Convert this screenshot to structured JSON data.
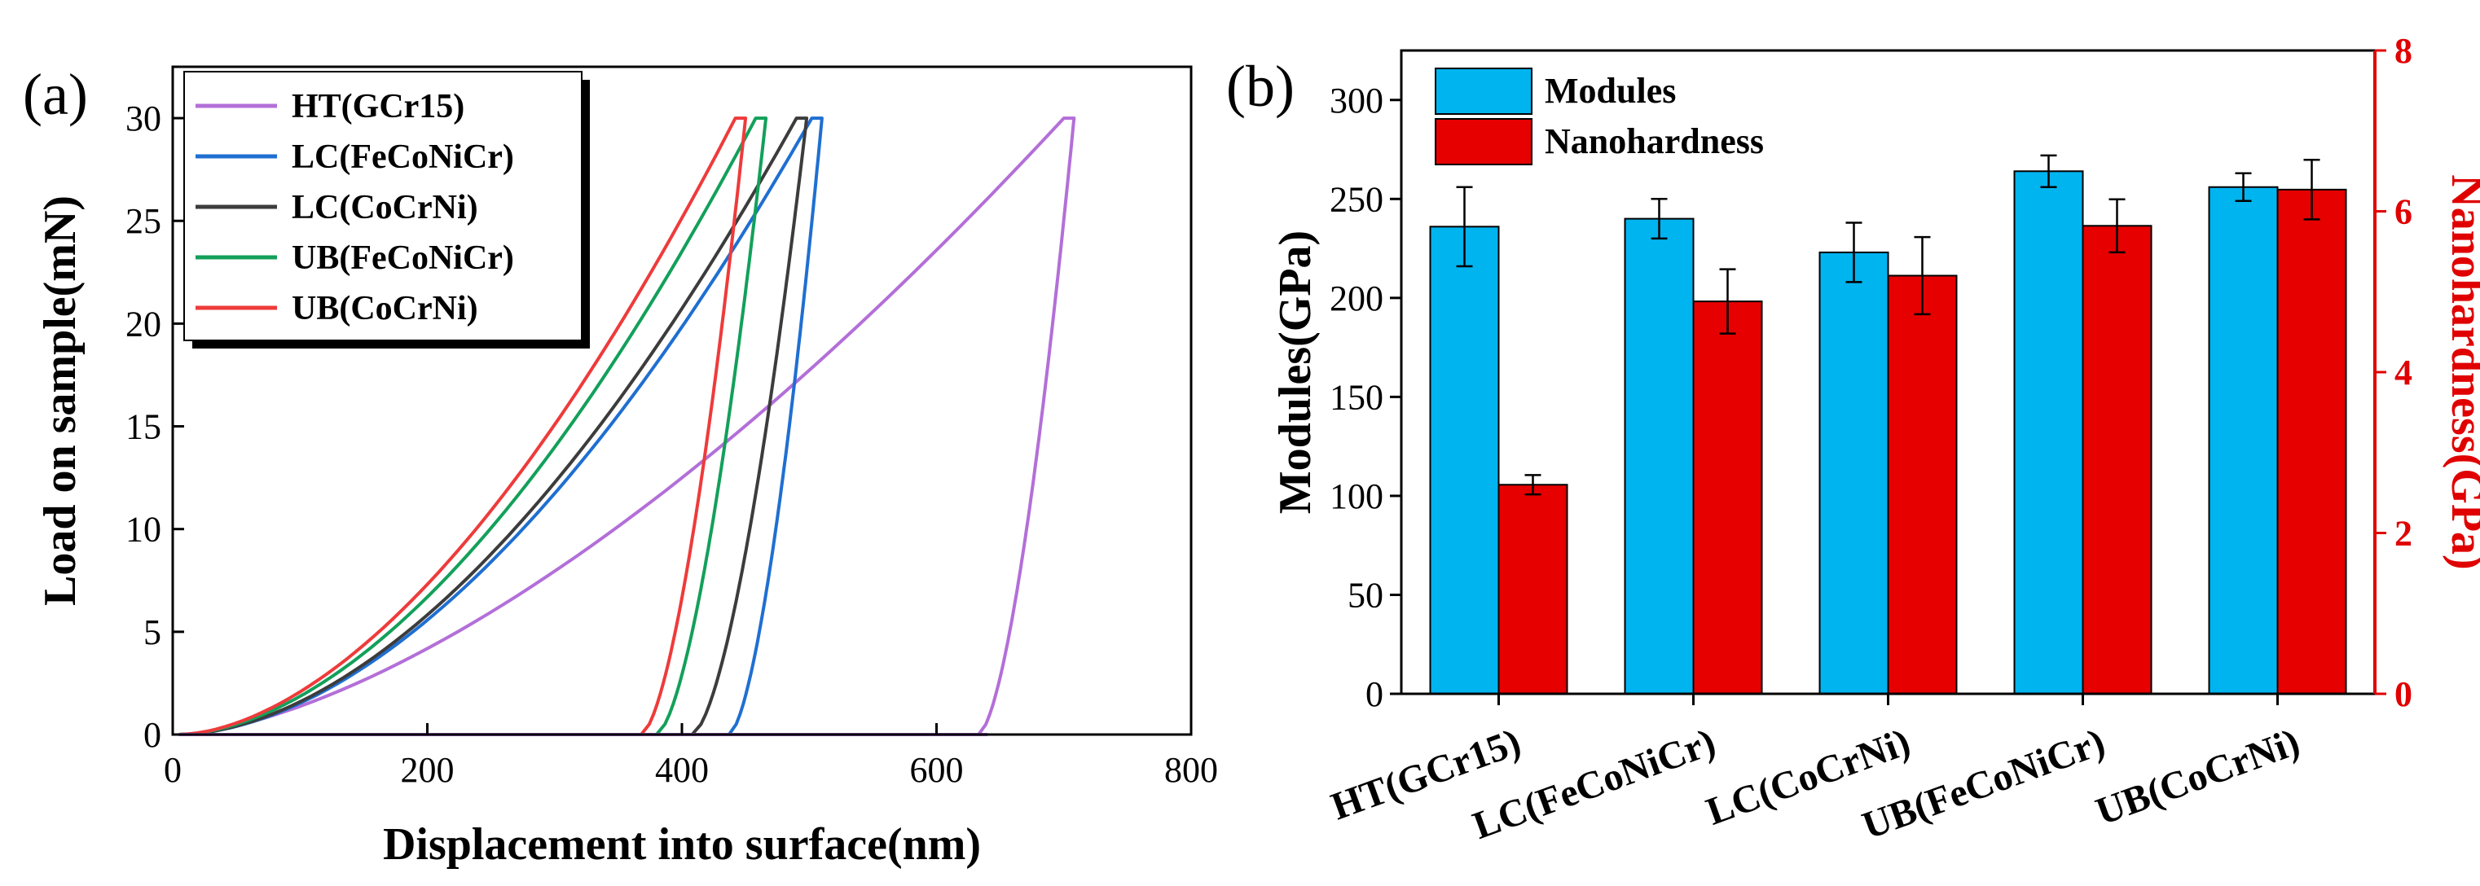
{
  "chart_data": [
    {
      "type": "line",
      "panel_label": "(a)",
      "xlabel": "Displacement into surface(nm)",
      "ylabel": "Load on sample(mN)",
      "xlim": [
        0,
        800
      ],
      "ylim": [
        0,
        32.5
      ],
      "xticks": [
        0,
        200,
        400,
        600,
        800
      ],
      "yticks": [
        0,
        5,
        10,
        15,
        20,
        25,
        30
      ],
      "legend_position": "top-left",
      "series": [
        {
          "name": "HT(GCr15)",
          "color": "#b36fd8",
          "hmax": 700,
          "hf": 633,
          "p": 1.55
        },
        {
          "name": "LC(FeCoNiCr)",
          "color": "#1f6fd1",
          "hmax": 502,
          "hf": 437,
          "p": 1.8
        },
        {
          "name": "LC(CoCrNi)",
          "color": "#3c3c3c",
          "hmax": 490,
          "hf": 408,
          "p": 1.8
        },
        {
          "name": "UB(FeCoNiCr)",
          "color": "#13a05a",
          "hmax": 458,
          "hf": 380,
          "p": 1.78
        },
        {
          "name": "UB(CoCrNi)",
          "color": "#ee3b3b",
          "hmax": 442,
          "hf": 368,
          "p": 1.75
        }
      ],
      "max_load": 30
    },
    {
      "type": "bar",
      "panel_label": "(b)",
      "categories": [
        "HT(GCr15)",
        "LC(FeCoNiCr)",
        "LC(CoCrNi)",
        "UB(FeCoNiCr)",
        "UB(CoCrNi)"
      ],
      "ylabel": "Modules(GPa)",
      "y2label": "Nanohardness(GPa)",
      "ylim": [
        0,
        325
      ],
      "y2lim": [
        0,
        8
      ],
      "yticks": [
        0,
        50,
        100,
        150,
        200,
        250,
        300
      ],
      "y2ticks": [
        0,
        2,
        4,
        6,
        8
      ],
      "legend_position": "top-left",
      "series": [
        {
          "name": "Modules",
          "axis": "left",
          "color": "#00b4f0",
          "values": [
            236,
            240,
            223,
            264,
            256
          ],
          "errors": [
            20,
            10,
            15,
            8,
            7
          ]
        },
        {
          "name": "Nanohardness",
          "axis": "right",
          "color": "#e60000",
          "values": [
            2.6,
            4.88,
            5.2,
            5.82,
            6.27
          ],
          "errors": [
            0.12,
            0.4,
            0.48,
            0.33,
            0.37
          ]
        }
      ]
    }
  ]
}
